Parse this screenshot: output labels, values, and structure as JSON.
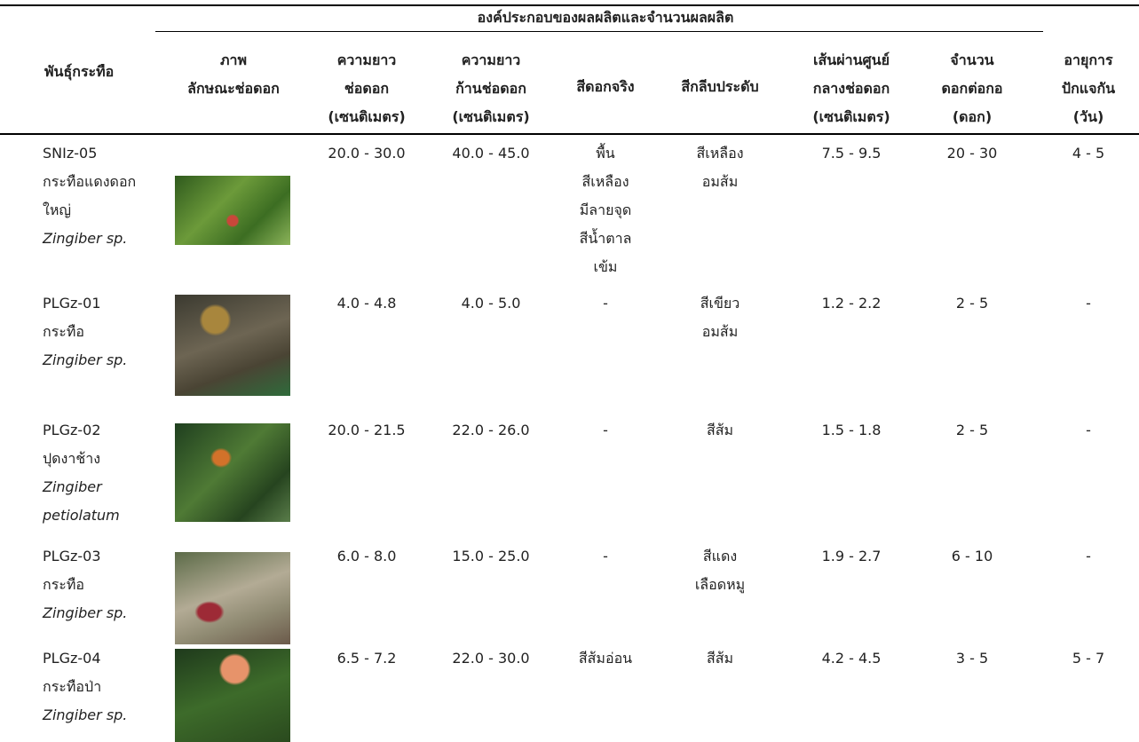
{
  "table": {
    "group_header": "องค์ประกอบของผลผลิตและจำนวนผลผลิต",
    "columns": [
      [
        "พันธุ์กระทือ"
      ],
      [
        "ภาพ",
        "ลักษณะช่อดอก"
      ],
      [
        "ความยาว",
        "ช่อดอก",
        "(เซนติเมตร)"
      ],
      [
        "ความยาว",
        "ก้านช่อดอก",
        "(เซนติเมตร)"
      ],
      [
        "สีดอกจริง"
      ],
      [
        "สีกลีบประดับ"
      ],
      [
        "เส้นผ่านศูนย์",
        "กลางช่อดอก",
        "(เซนติเมตร)"
      ],
      [
        "จำนวน",
        "ดอกต่อกอ",
        "(ดอก)"
      ],
      [
        "อายุการ",
        "ปักแจกัน",
        "(วัน)"
      ]
    ],
    "rows": [
      {
        "name": [
          "SNIz-05",
          "กระทือแดงดอก",
          "ใหญ่"
        ],
        "species": [
          "Zingiber sp."
        ],
        "cells": [
          [
            "20.0 - 30.0"
          ],
          [
            "40.0 - 45.0"
          ],
          [
            "พื้น",
            "สีเหลือง",
            "มีลายจุด",
            "สีน้ำตาล",
            "เข้ม"
          ],
          [
            "สีเหลือง",
            "อมส้ม"
          ],
          [
            "7.5 - 9.5"
          ],
          [
            "20 - 30"
          ],
          [
            "4 - 5"
          ]
        ]
      },
      {
        "name": [
          "PLGz-01",
          "กระทือ"
        ],
        "species": [
          "Zingiber sp."
        ],
        "cells": [
          [
            "4.0 - 4.8"
          ],
          [
            "4.0 - 5.0"
          ],
          [
            "-"
          ],
          [
            "สีเขียว",
            "อมส้ม"
          ],
          [
            "1.2 - 2.2"
          ],
          [
            "2 - 5"
          ],
          [
            "-"
          ]
        ]
      },
      {
        "name": [
          "PLGz-02",
          "ปุดงาช้าง"
        ],
        "species": [
          "Zingiber",
          "petiolatum"
        ],
        "cells": [
          [
            "20.0 - 21.5"
          ],
          [
            "22.0 - 26.0"
          ],
          [
            "-"
          ],
          [
            "สีส้ม"
          ],
          [
            "1.5 - 1.8"
          ],
          [
            "2 - 5"
          ],
          [
            "-"
          ]
        ]
      },
      {
        "name": [
          "PLGz-03",
          "กระทือ"
        ],
        "species": [
          "Zingiber sp."
        ],
        "cells": [
          [
            "6.0 - 8.0"
          ],
          [
            "15.0 - 25.0"
          ],
          [
            "-"
          ],
          [
            "สีแดง",
            "เลือดหมู"
          ],
          [
            "1.9 - 2.7"
          ],
          [
            "6 - 10"
          ],
          [
            "-"
          ]
        ]
      },
      {
        "name": [
          "PLGz-04",
          "กระทือป่า"
        ],
        "species": [
          "Zingiber sp."
        ],
        "cells": [
          [
            "6.5 - 7.2"
          ],
          [
            "22.0 - 30.0"
          ],
          [
            "สีส้มอ่อน"
          ],
          [
            "สีส้ม"
          ],
          [
            "4.2 - 4.5"
          ],
          [
            "3 - 5"
          ],
          [
            "5 - 7"
          ]
        ]
      }
    ]
  }
}
